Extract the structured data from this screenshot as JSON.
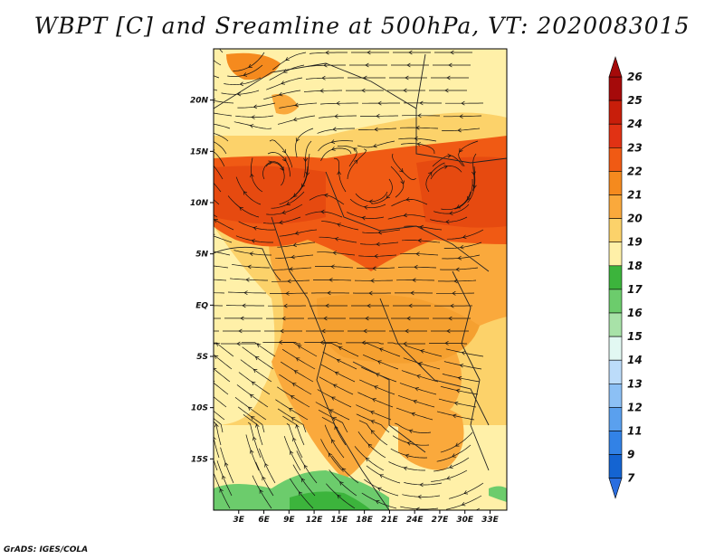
{
  "title": "WBPT [C] and Sreamline at 500hPa, VT: 2020083015",
  "credit": "GrADS: IGES/COLA",
  "map": {
    "lon_range": [
      0,
      35
    ],
    "lat_range": [
      -20,
      25
    ],
    "lon_ticks": [
      "3E",
      "6E",
      "9E",
      "12E",
      "15E",
      "18E",
      "21E",
      "24E",
      "27E",
      "30E",
      "33E"
    ],
    "lat_ticks": [
      "20N",
      "15N",
      "10N",
      "5N",
      "EQ",
      "5S",
      "10S",
      "15S"
    ]
  },
  "colorbar": {
    "labels": [
      "26",
      "25",
      "24",
      "23",
      "22",
      "21",
      "20",
      "19",
      "18",
      "17",
      "16",
      "15",
      "14",
      "13",
      "12",
      "11",
      "9",
      "7"
    ],
    "colors": [
      "#a50a0a",
      "#c81e0a",
      "#e13214",
      "#f05a14",
      "#f58a1e",
      "#faa93c",
      "#fcd26a",
      "#fff0a8",
      "#3cb43c",
      "#6ccc6c",
      "#a8e2a8",
      "#e2f8f2",
      "#bcdcfa",
      "#8cc0f5",
      "#5aa0ee",
      "#3282e6",
      "#1464d2"
    ]
  }
}
